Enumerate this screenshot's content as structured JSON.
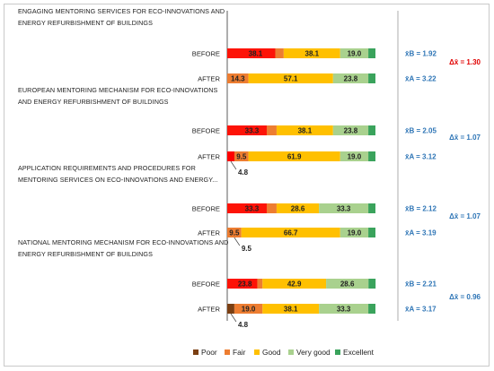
{
  "chart_data": {
    "type": "bar",
    "stacked": true,
    "orientation": "horizontal",
    "xlim": [
      0,
      100
    ],
    "legend_position": "bottom",
    "series": [
      {
        "name": "Poor",
        "color": "#7b3f12"
      },
      {
        "name": "Fair",
        "color": "#ed7d31"
      },
      {
        "name": "Good",
        "color": "#ffc000"
      },
      {
        "name": "Very good",
        "color": "#a9d18e"
      },
      {
        "name": "Excellent",
        "color": "#3aa35c"
      }
    ],
    "groups": [
      {
        "title_lines": [
          "ENGAGING MENTORING SERVICES FOR ECO-INNOVATIONS AND",
          "ENERGY REFURBISHMENT OF BUILDINGS"
        ],
        "before": {
          "label": "BEFORE",
          "values": [
            0,
            38.1,
            38.1,
            19.0,
            4.8
          ],
          "lead_colors": [
            "#ff0000",
            "#ff0000"
          ],
          "mean_label": "x̄B = 1.92"
        },
        "after": {
          "label": "AFTER",
          "values": [
            0,
            14.3,
            57.1,
            23.8,
            4.8
          ],
          "mean_label": "x̄A = 3.22"
        },
        "delta_label": "Δx̄ = 1.30",
        "delta_color": "#e00000"
      },
      {
        "title_lines": [
          "EUROPEAN MENTORING MECHANISM  FOR ECO-INNOVATIONS",
          "AND ENERGY REFURBISHMENT OF BUILDINGS"
        ],
        "before": {
          "label": "BEFORE",
          "values": [
            0,
            33.3,
            38.1,
            23.8,
            4.8
          ],
          "lead_colors": [
            "#ff0000"
          ],
          "mean_label": "x̄B = 2.05"
        },
        "after": {
          "label": "AFTER",
          "values": [
            4.8,
            9.5,
            61.9,
            19.0,
            4.8
          ],
          "lead_colors": [
            "#ff0000"
          ],
          "mean_label": "x̄A = 3.12",
          "callout": "4.8"
        },
        "delta_label": "Δx̄ = 1.07",
        "delta_color": "#2e75b6"
      },
      {
        "title_lines": [
          "APPLICATION REQUIREMENTS AND PROCEDURES FOR",
          "MENTORING SERVICES ON ECO-INNOVATIONS AND ENERGY..."
        ],
        "before": {
          "label": "BEFORE",
          "values": [
            0,
            33.3,
            28.6,
            33.3,
            4.8
          ],
          "lead_colors": [
            "#ff0000"
          ],
          "mean_label": "x̄B = 2.12"
        },
        "after": {
          "label": "AFTER",
          "values": [
            0,
            9.5,
            66.7,
            19.0,
            4.8
          ],
          "mean_label": "x̄A = 3.19",
          "callout": "9.5"
        },
        "delta_label": "Δx̄ = 1.07",
        "delta_color": "#2e75b6"
      },
      {
        "title_lines": [
          "NATIONAL MENTORING MECHANISM FOR ECO-INNOVATIONS AND",
          "ENERGY REFURBISHMENT OF BUILDINGS"
        ],
        "before": {
          "label": "BEFORE",
          "values": [
            0,
            23.8,
            42.9,
            28.6,
            4.8
          ],
          "lead_colors": [
            "#ff0000",
            "#ff0000"
          ],
          "mean_label": "x̄B = 2.21"
        },
        "after": {
          "label": "AFTER",
          "values": [
            4.8,
            19.0,
            38.1,
            33.3,
            4.8
          ],
          "mean_label": "x̄A = 3.17",
          "callout": "4.8"
        },
        "delta_label": "Δx̄ = 0.96",
        "delta_color": "#2e75b6"
      }
    ]
  }
}
